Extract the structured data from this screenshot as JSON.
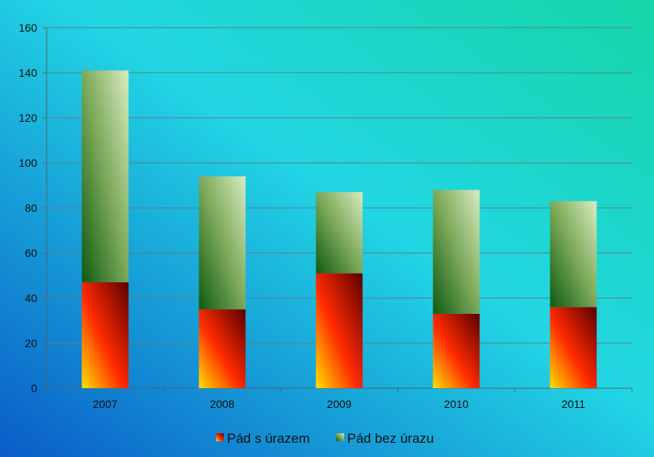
{
  "chart_data": {
    "type": "bar",
    "stacked": true,
    "categories": [
      "2007",
      "2008",
      "2009",
      "2010",
      "2011"
    ],
    "series": [
      {
        "name": "Pád s úrazem",
        "values": [
          47,
          35,
          51,
          33,
          36
        ]
      },
      {
        "name": "Pád bez úrazu",
        "values": [
          94,
          59,
          36,
          55,
          47
        ]
      }
    ],
    "ylim": [
      0,
      160
    ],
    "yticks": [
      0,
      20,
      40,
      60,
      80,
      100,
      120,
      140,
      160
    ],
    "grid": true,
    "legend_position": "bottom",
    "colors": {
      "series1_light": "#ffe000",
      "series1_mid": "#ff2a00",
      "series1_dark": "#5a0000",
      "series2_light": "#d9ecc0",
      "series2_mid": "#7aa858",
      "series2_dark": "#0f5a12",
      "background_top_right": "#14d6a6",
      "background_mid": "#22d6e4",
      "background_bottom_left": "#0a5cc8"
    }
  }
}
